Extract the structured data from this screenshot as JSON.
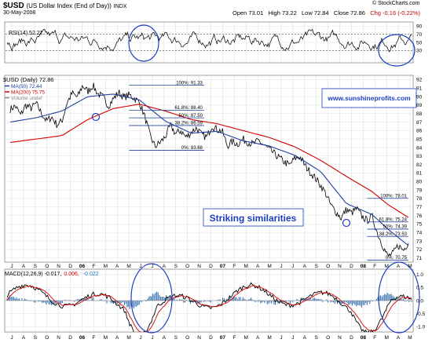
{
  "header": {
    "symbol": "$USD",
    "name": "(US Dollar Index (End of Day))",
    "exchange": "INDX",
    "date": "30-May-2008",
    "open": "Open 73.01",
    "high": "High 73.22",
    "low": "Low 72.84",
    "close": "Close 72.86",
    "change": "Chg -0.16 (-0.22%)",
    "watermark": "© StockCharts.com",
    "down_color": "#c00000"
  },
  "annotations": {
    "website": "www.sunshineprofits.com",
    "striking": "Striking similarities",
    "circle_color": "#1f3fbf",
    "website_color": "#1f3fbf",
    "striking_color": "#1f3fbf"
  },
  "chart_data": [
    {
      "type": "line",
      "panel": "rsi",
      "label": "RSI(14) 52.22",
      "ylim": [
        0,
        100
      ],
      "yticks": [
        30,
        50,
        70,
        90
      ],
      "levels": [
        30,
        70
      ],
      "series": [
        {
          "name": "RSI(14)",
          "last": 52.22,
          "color": "#000000"
        }
      ],
      "x_months": [
        "J",
        "A",
        "S",
        "O",
        "N",
        "D",
        "06",
        "F",
        "M",
        "A",
        "M",
        "J",
        "J",
        "A",
        "S",
        "O",
        "N",
        "D",
        "07",
        "F",
        "M",
        "A",
        "M",
        "J",
        "J",
        "A",
        "S",
        "O",
        "N",
        "D",
        "08",
        "F",
        "M",
        "A",
        "M"
      ]
    },
    {
      "type": "line",
      "panel": "price",
      "title": "$USD (Daily) 72.86",
      "ylim": [
        70.5,
        92.5
      ],
      "yticks": [
        71,
        72,
        73,
        74,
        75,
        76,
        77,
        78,
        79,
        80,
        81,
        82,
        83,
        84,
        85,
        86,
        87,
        88,
        89,
        90,
        91,
        92
      ],
      "x_months": [
        "J",
        "A",
        "S",
        "O",
        "N",
        "D",
        "06",
        "F",
        "M",
        "A",
        "M",
        "J",
        "J",
        "A",
        "S",
        "O",
        "N",
        "D",
        "07",
        "F",
        "M",
        "A",
        "M",
        "J",
        "J",
        "A",
        "S",
        "O",
        "N",
        "D",
        "08",
        "F",
        "M",
        "A",
        "M"
      ],
      "legend": [
        {
          "label": "$USD (Daily) 72.86",
          "color": "#000000"
        },
        {
          "label": "MA(50) 72.44",
          "color": "#1f3f9f"
        },
        {
          "label": "MA(200) 75.75",
          "color": "#d40000"
        },
        {
          "label": "Volume undef",
          "color": "#8a8a8a"
        }
      ],
      "series": [
        {
          "name": "$USD (Daily)",
          "color": "#000000",
          "points": [
            [
              0,
              88.5
            ],
            [
              1,
              88.9
            ],
            [
              2,
              87.8
            ],
            [
              3,
              89.0
            ],
            [
              4,
              88.6
            ],
            [
              5,
              89.2
            ],
            [
              6,
              88.1
            ],
            [
              7,
              87.1
            ],
            [
              8,
              87.6
            ],
            [
              9,
              86.7
            ],
            [
              10,
              87.1
            ],
            [
              11,
              89.3
            ],
            [
              12,
              90.4
            ],
            [
              13,
              89.9
            ],
            [
              14,
              91.3
            ],
            [
              15,
              90.6
            ],
            [
              16,
              91.3
            ],
            [
              17,
              90.3
            ],
            [
              18,
              89.9
            ],
            [
              19,
              88.9
            ],
            [
              20,
              89.8
            ],
            [
              21,
              90.5
            ],
            [
              22,
              89.9
            ],
            [
              23,
              90.2
            ],
            [
              24,
              89.8
            ],
            [
              25,
              89.3
            ],
            [
              26,
              87.7
            ],
            [
              27,
              85.5
            ],
            [
              28,
              84.1
            ],
            [
              29,
              84.6
            ],
            [
              30,
              85.3
            ],
            [
              31,
              86.6
            ],
            [
              32,
              85.6
            ],
            [
              33,
              86.0
            ],
            [
              34,
              85.2
            ],
            [
              35,
              85.8
            ],
            [
              36,
              86.3
            ],
            [
              37,
              85.5
            ],
            [
              38,
              85.2
            ],
            [
              39,
              86.6
            ],
            [
              40,
              86.1
            ],
            [
              41,
              85.9
            ],
            [
              42,
              84.2
            ],
            [
              43,
              84.7
            ],
            [
              44,
              84.4
            ],
            [
              45,
              85.0
            ],
            [
              46,
              84.6
            ],
            [
              47,
              84.4
            ],
            [
              48,
              84.8
            ],
            [
              49,
              84.3
            ],
            [
              50,
              83.8
            ],
            [
              51,
              83.3
            ],
            [
              52,
              82.8
            ],
            [
              53,
              82.3
            ],
            [
              54,
              81.9
            ],
            [
              55,
              82.7
            ],
            [
              56,
              82.9
            ],
            [
              57,
              81.9
            ],
            [
              58,
              81.1
            ],
            [
              59,
              80.4
            ],
            [
              60,
              79.6
            ],
            [
              61,
              78.6
            ],
            [
              62,
              77.2
            ],
            [
              63,
              76.4
            ],
            [
              64,
              75.7
            ],
            [
              65,
              76.7
            ],
            [
              66,
              76.3
            ],
            [
              67,
              76.8
            ],
            [
              68,
              75.9
            ],
            [
              69,
              75.4
            ],
            [
              70,
              75.9
            ],
            [
              71,
              73.9
            ],
            [
              72,
              72.5
            ],
            [
              73,
              71.2
            ],
            [
              74,
              71.5
            ],
            [
              75,
              72.5
            ],
            [
              76,
              71.9
            ],
            [
              77,
              72.86
            ]
          ]
        },
        {
          "name": "MA(50)",
          "color": "#1f3f9f",
          "points": [
            [
              0,
              87.0
            ],
            [
              5,
              87.5
            ],
            [
              10,
              88.3
            ],
            [
              15,
              90.0
            ],
            [
              20,
              90.3
            ],
            [
              25,
              89.6
            ],
            [
              30,
              87.1
            ],
            [
              35,
              85.7
            ],
            [
              40,
              85.9
            ],
            [
              45,
              84.8
            ],
            [
              50,
              84.2
            ],
            [
              55,
              83.1
            ],
            [
              60,
              81.2
            ],
            [
              65,
              77.4
            ],
            [
              70,
              76.1
            ],
            [
              73,
              74.4
            ],
            [
              77,
              72.44
            ]
          ]
        },
        {
          "name": "MA(200)",
          "color": "#d40000",
          "points": [
            [
              0,
              84.6
            ],
            [
              10,
              85.4
            ],
            [
              15,
              87.3
            ],
            [
              20,
              88.6
            ],
            [
              25,
              89.1
            ],
            [
              30,
              88.3
            ],
            [
              35,
              87.3
            ],
            [
              40,
              86.8
            ],
            [
              45,
              86.0
            ],
            [
              50,
              85.2
            ],
            [
              55,
              84.1
            ],
            [
              60,
              82.5
            ],
            [
              65,
              80.6
            ],
            [
              70,
              78.8
            ],
            [
              73,
              77.3
            ],
            [
              77,
              75.75
            ]
          ]
        }
      ],
      "fibonacci": [
        {
          "set": "upper",
          "label": "100%: 91.33",
          "value": 91.33
        },
        {
          "set": "upper",
          "label": "61.8%: 88.40",
          "value": 88.4
        },
        {
          "set": "upper",
          "label": "50%: 87.50",
          "value": 87.5
        },
        {
          "set": "upper",
          "label": "38.2%: 86.59",
          "value": 86.59
        },
        {
          "set": "upper",
          "label": "0%: 83.68",
          "value": 83.68
        },
        {
          "set": "lower",
          "label": "100%: 78.01",
          "value": 78.01
        },
        {
          "set": "lower",
          "label": "61.8%: 75.24",
          "value": 75.24
        },
        {
          "set": "lower",
          "label": "50%: 74.39",
          "value": 74.39
        },
        {
          "set": "lower",
          "label": "38.2%: 73.53",
          "value": 73.53
        },
        {
          "set": "lower",
          "label": "0%: 70.75",
          "value": 70.75
        }
      ]
    },
    {
      "type": "line",
      "panel": "macd",
      "label": "MACD(12,26,9) -0.017, 0.006, -0.022",
      "legend": [
        {
          "label": "MACD(12,26,9) -0.017,",
          "color": "#000000"
        },
        {
          "label": "0.006,",
          "color": "#d40000"
        },
        {
          "label": "-0.022",
          "color": "#1f6fbf"
        }
      ],
      "ylim": [
        -1.2,
        1.2
      ],
      "yticks": [
        1.0,
        0.5,
        0.0,
        -0.5,
        -1.0
      ],
      "x_months": [
        "J",
        "A",
        "S",
        "O",
        "N",
        "D",
        "06",
        "F",
        "M",
        "A",
        "M",
        "J",
        "J",
        "A",
        "S",
        "O",
        "N",
        "D",
        "07",
        "F",
        "M",
        "A",
        "M",
        "J",
        "J",
        "A",
        "S",
        "O",
        "N",
        "D",
        "08",
        "F",
        "M",
        "A",
        "M"
      ]
    }
  ]
}
